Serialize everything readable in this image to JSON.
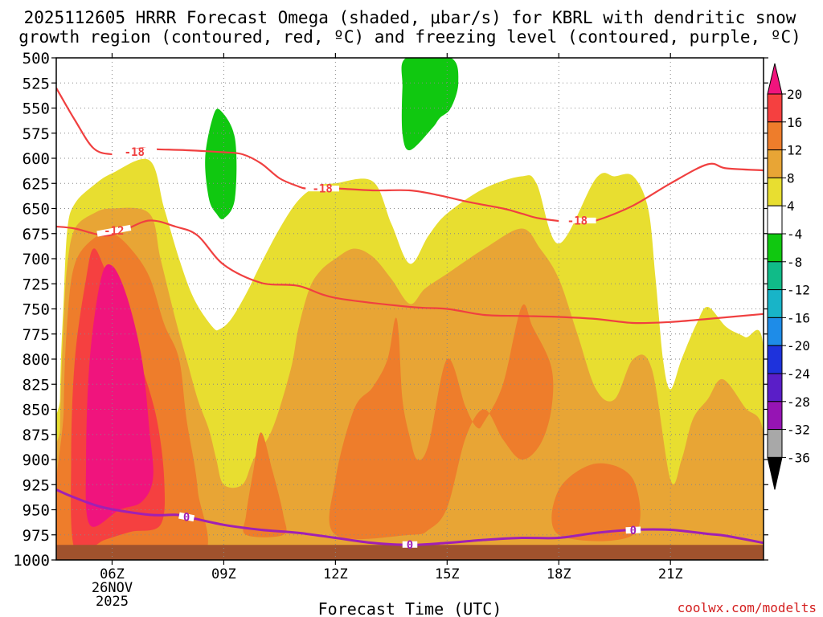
{
  "chart_data": {
    "type": "heatmap",
    "title_line1": "2025112605 HRRR Forecast Omega (shaded, μbar/s) for KBRL with dendritic snow",
    "title_line2": "growth region (contoured, red, ºC) and freezing level (contoured, purple, ºC)",
    "xlabel": "Forecast Time (UTC)",
    "ylabel": "",
    "credit": "coolwx.com/modelts",
    "x_range": [
      4.5,
      23.5
    ],
    "ylim": [
      1000,
      500
    ],
    "y_ticks": [
      "500",
      "525",
      "550",
      "575",
      "600",
      "625",
      "650",
      "675",
      "700",
      "725",
      "750",
      "775",
      "800",
      "825",
      "850",
      "875",
      "900",
      "925",
      "950",
      "975",
      "1000"
    ],
    "x_ticks": [
      {
        "hour": 6,
        "label": "06Z",
        "date_line1": "26NOV",
        "date_line2": "2025"
      },
      {
        "hour": 9,
        "label": "09Z"
      },
      {
        "hour": 12,
        "label": "12Z"
      },
      {
        "hour": 15,
        "label": "15Z"
      },
      {
        "hour": 18,
        "label": "18Z"
      },
      {
        "hour": 21,
        "label": "21Z"
      }
    ],
    "colorbar": {
      "ticks": [
        "20",
        "16",
        "12",
        "8",
        "4",
        "-4",
        "-8",
        "-12",
        "-16",
        "-20",
        "-24",
        "-28",
        "-32",
        "-36"
      ],
      "bins": [
        {
          "color": "#f0147d"
        },
        {
          "color": "#f54040"
        },
        {
          "color": "#ee7d2b"
        },
        {
          "color": "#e8a535"
        },
        {
          "color": "#e8de30"
        },
        {
          "color": "#ffffff"
        },
        {
          "color": "#10c810"
        },
        {
          "color": "#10bb88"
        },
        {
          "color": "#18b4c8"
        },
        {
          "color": "#1e8ce8"
        },
        {
          "color": "#1e32dc"
        },
        {
          "color": "#5a1ec8"
        },
        {
          "color": "#9614b4"
        },
        {
          "color": "#a8a8a8"
        }
      ]
    },
    "omega_regions": [
      {
        "name": "omega-4to8-main",
        "color": "#e8de30",
        "points": [
          [
            4.6,
            1000
          ],
          [
            4.6,
            840
          ],
          [
            4.7,
            740
          ],
          [
            4.8,
            670
          ],
          [
            5,
            645
          ],
          [
            5.5,
            627
          ],
          [
            6,
            615
          ],
          [
            7,
            602
          ],
          [
            7.4,
            650
          ],
          [
            7.8,
            700
          ],
          [
            8.2,
            740
          ],
          [
            8.7,
            768
          ],
          [
            8.9,
            770
          ],
          [
            9.2,
            760
          ],
          [
            9.6,
            735
          ],
          [
            10,
            705
          ],
          [
            10.5,
            670
          ],
          [
            11,
            642
          ],
          [
            11.5,
            628
          ],
          [
            12,
            625
          ],
          [
            13,
            623
          ],
          [
            13.5,
            665
          ],
          [
            14,
            705
          ],
          [
            14.5,
            677
          ],
          [
            15,
            655
          ],
          [
            16,
            630
          ],
          [
            17,
            618
          ],
          [
            17.4,
            625
          ],
          [
            18,
            685
          ],
          [
            19,
            620
          ],
          [
            19.5,
            618
          ],
          [
            20,
            618
          ],
          [
            20.4,
            650
          ],
          [
            20.6,
            720
          ],
          [
            20.8,
            800
          ],
          [
            21,
            830
          ],
          [
            21.3,
            800
          ],
          [
            21.7,
            765
          ],
          [
            22,
            748
          ],
          [
            22.5,
            768
          ],
          [
            23,
            778
          ],
          [
            23.5,
            790
          ],
          [
            23.5,
            1000
          ]
        ]
      },
      {
        "name": "omega-8to12",
        "color": "#e8a535",
        "points": [
          [
            4.6,
            1000
          ],
          [
            4.6,
            870
          ],
          [
            4.7,
            760
          ],
          [
            4.8,
            705
          ],
          [
            5,
            670
          ],
          [
            5.5,
            655
          ],
          [
            6,
            650
          ],
          [
            7,
            655
          ],
          [
            7.3,
            700
          ],
          [
            7.7,
            760
          ],
          [
            8,
            800
          ],
          [
            8.3,
            840
          ],
          [
            8.6,
            870
          ],
          [
            8.8,
            900
          ],
          [
            9,
            925
          ],
          [
            9.5,
            925
          ],
          [
            9.8,
            900
          ],
          [
            10.3,
            870
          ],
          [
            10.8,
            810
          ],
          [
            11,
            770
          ],
          [
            11.3,
            730
          ],
          [
            11.6,
            712
          ],
          [
            12,
            700
          ],
          [
            12.5,
            690
          ],
          [
            13,
            698
          ],
          [
            13.5,
            720
          ],
          [
            14,
            745
          ],
          [
            14.4,
            730
          ],
          [
            15,
            715
          ],
          [
            16,
            690
          ],
          [
            17,
            670
          ],
          [
            17.5,
            690
          ],
          [
            18,
            720
          ],
          [
            18.5,
            775
          ],
          [
            19,
            830
          ],
          [
            19.5,
            840
          ],
          [
            20,
            800
          ],
          [
            20.5,
            810
          ],
          [
            21,
            920
          ],
          [
            21.3,
            900
          ],
          [
            21.6,
            860
          ],
          [
            22,
            840
          ],
          [
            22.4,
            820
          ],
          [
            23,
            848
          ],
          [
            23.5,
            875
          ],
          [
            23.5,
            1000
          ]
        ]
      },
      {
        "name": "omega-12to16-a",
        "color": "#ee7d2b",
        "points": [
          [
            4.7,
            1000
          ],
          [
            4.7,
            850
          ],
          [
            4.8,
            760
          ],
          [
            5,
            705
          ],
          [
            5.5,
            680
          ],
          [
            6,
            675
          ],
          [
            6.5,
            690
          ],
          [
            7,
            718
          ],
          [
            7.4,
            765
          ],
          [
            7.8,
            800
          ],
          [
            8,
            860
          ],
          [
            8.3,
            930
          ],
          [
            8.3,
            1000
          ]
        ]
      },
      {
        "name": "omega-12to16-b",
        "color": "#ee7d2b",
        "points": [
          [
            9.6,
            955
          ],
          [
            9.8,
            910
          ],
          [
            10,
            873
          ],
          [
            10.3,
            910
          ],
          [
            10.6,
            955
          ],
          [
            10.6,
            975
          ],
          [
            9.6,
            975
          ]
        ]
      },
      {
        "name": "omega-12to16-c",
        "color": "#ee7d2b",
        "points": [
          [
            12,
            975
          ],
          [
            12,
            920
          ],
          [
            12.5,
            850
          ],
          [
            13,
            828
          ],
          [
            13.4,
            800
          ],
          [
            13.6,
            760
          ],
          [
            13.7,
            775
          ],
          [
            13.8,
            840
          ],
          [
            14,
            878
          ],
          [
            14.2,
            900
          ],
          [
            14.5,
            885
          ],
          [
            15,
            800
          ],
          [
            15.5,
            848
          ],
          [
            15.8,
            868
          ],
          [
            16,
            862
          ],
          [
            16.5,
            825
          ],
          [
            17,
            748
          ],
          [
            17.3,
            768
          ],
          [
            17.8,
            808
          ],
          [
            17.8,
            850
          ],
          [
            17.5,
            885
          ],
          [
            17,
            900
          ],
          [
            16.5,
            880
          ],
          [
            16,
            850
          ],
          [
            15.5,
            878
          ],
          [
            15,
            948
          ],
          [
            14.5,
            970
          ],
          [
            14,
            975
          ]
        ]
      },
      {
        "name": "omega-12to16-d",
        "color": "#ee7d2b",
        "points": [
          [
            18,
            975
          ],
          [
            18,
            930
          ],
          [
            19,
            904
          ],
          [
            20,
            920
          ],
          [
            20,
            975
          ]
        ]
      },
      {
        "name": "omega-16to20",
        "color": "#f54040",
        "points": [
          [
            5,
            990
          ],
          [
            4.9,
            900
          ],
          [
            5,
            800
          ],
          [
            5.3,
            720
          ],
          [
            5.5,
            690
          ],
          [
            5.8,
            710
          ],
          [
            6.3,
            758
          ],
          [
            6.8,
            808
          ],
          [
            7.2,
            860
          ],
          [
            7.4,
            920
          ],
          [
            7.3,
            965
          ],
          [
            6.5,
            972
          ],
          [
            5.8,
            980
          ]
        ]
      },
      {
        "name": "omega-gt20",
        "color": "#f0147d",
        "points": [
          [
            5.4,
            965
          ],
          [
            5.3,
            900
          ],
          [
            5.4,
            800
          ],
          [
            5.7,
            720
          ],
          [
            6,
            707
          ],
          [
            6.4,
            738
          ],
          [
            6.8,
            800
          ],
          [
            7,
            870
          ],
          [
            7.1,
            918
          ],
          [
            6.8,
            942
          ],
          [
            6.2,
            950
          ]
        ]
      },
      {
        "name": "omega-neg4to8-a",
        "color": "#10c810",
        "points": [
          [
            8.6,
            640
          ],
          [
            8.5,
            600
          ],
          [
            8.7,
            560
          ],
          [
            8.9,
            552
          ],
          [
            9.3,
            580
          ],
          [
            9.3,
            640
          ],
          [
            9,
            660
          ],
          [
            8.8,
            655
          ]
        ]
      },
      {
        "name": "omega-neg4to8-b",
        "color": "#10c810",
        "points": [
          [
            14,
            592
          ],
          [
            13.8,
            575
          ],
          [
            13.8,
            530
          ],
          [
            13.9,
            500
          ],
          [
            15.1,
            500
          ],
          [
            15.3,
            525
          ],
          [
            15.1,
            550
          ],
          [
            14.8,
            560
          ],
          [
            14.6,
            570
          ]
        ]
      }
    ],
    "ground": {
      "color": "#a0522d",
      "top_pressure": 985
    },
    "dsg_contours": [
      {
        "name": "dsg-minus18-contour",
        "color": "#f04040",
        "label": "-18",
        "points": [
          [
            4.5,
            530
          ],
          [
            5,
            562
          ],
          [
            5.5,
            590
          ],
          [
            6,
            596
          ],
          [
            6.4,
            593
          ],
          [
            6.8,
            590
          ],
          [
            7.2,
            591
          ],
          [
            8,
            592
          ],
          [
            9,
            594
          ],
          [
            9.5,
            596
          ],
          [
            10,
            605
          ],
          [
            10.5,
            620
          ],
          [
            11,
            628
          ],
          [
            11.2,
            630
          ],
          [
            11.5,
            630
          ],
          [
            12,
            630
          ],
          [
            13,
            632
          ],
          [
            14,
            632
          ],
          [
            14.8,
            637
          ],
          [
            15.5,
            643
          ],
          [
            16.5,
            650
          ],
          [
            17,
            655
          ],
          [
            17.5,
            660
          ],
          [
            18.5,
            664
          ],
          [
            19,
            662
          ],
          [
            20,
            647
          ],
          [
            21,
            625
          ],
          [
            22,
            606
          ],
          [
            22.5,
            610
          ],
          [
            23.5,
            612
          ]
        ],
        "label_at": [
          6.0,
          7.2,
          11.2,
          12.1,
          18.0,
          19.0
        ]
      },
      {
        "name": "dsg-minus12-contour",
        "color": "#f04040",
        "label": "-12",
        "points": [
          [
            4.5,
            668
          ],
          [
            5,
            670
          ],
          [
            5.8,
            677
          ],
          [
            6.3,
            672
          ],
          [
            7,
            662
          ],
          [
            7.7,
            668
          ],
          [
            8.3,
            677
          ],
          [
            9,
            706
          ],
          [
            10,
            724
          ],
          [
            11,
            727
          ],
          [
            12,
            739
          ],
          [
            14,
            748
          ],
          [
            15,
            750
          ],
          [
            16,
            756
          ],
          [
            17,
            757
          ],
          [
            18,
            758
          ],
          [
            19,
            760
          ],
          [
            20,
            764
          ],
          [
            21,
            763
          ],
          [
            22,
            760
          ],
          [
            23.5,
            755
          ]
        ],
        "label_at": [
          5.6,
          6.5
        ]
      }
    ],
    "freezing_level": {
      "name": "freezing-level-0C-contour",
      "color": "#a020b4",
      "label": "0",
      "points": [
        [
          4.5,
          930
        ],
        [
          5,
          938
        ],
        [
          5.8,
          948
        ],
        [
          7,
          955
        ],
        [
          7.7,
          955
        ],
        [
          8,
          957
        ],
        [
          9,
          965
        ],
        [
          10,
          970
        ],
        [
          11,
          973
        ],
        [
          12,
          978
        ],
        [
          13,
          983
        ],
        [
          14,
          985
        ],
        [
          15,
          983
        ],
        [
          16,
          980
        ],
        [
          17,
          978
        ],
        [
          18,
          978
        ],
        [
          19,
          973
        ],
        [
          20,
          970
        ],
        [
          21,
          970
        ],
        [
          22,
          974
        ],
        [
          22.5,
          976
        ],
        [
          23.5,
          983
        ]
      ],
      "label_at": [
        7.8,
        8.2,
        13.8,
        14.2,
        19.8,
        20.2
      ]
    }
  }
}
